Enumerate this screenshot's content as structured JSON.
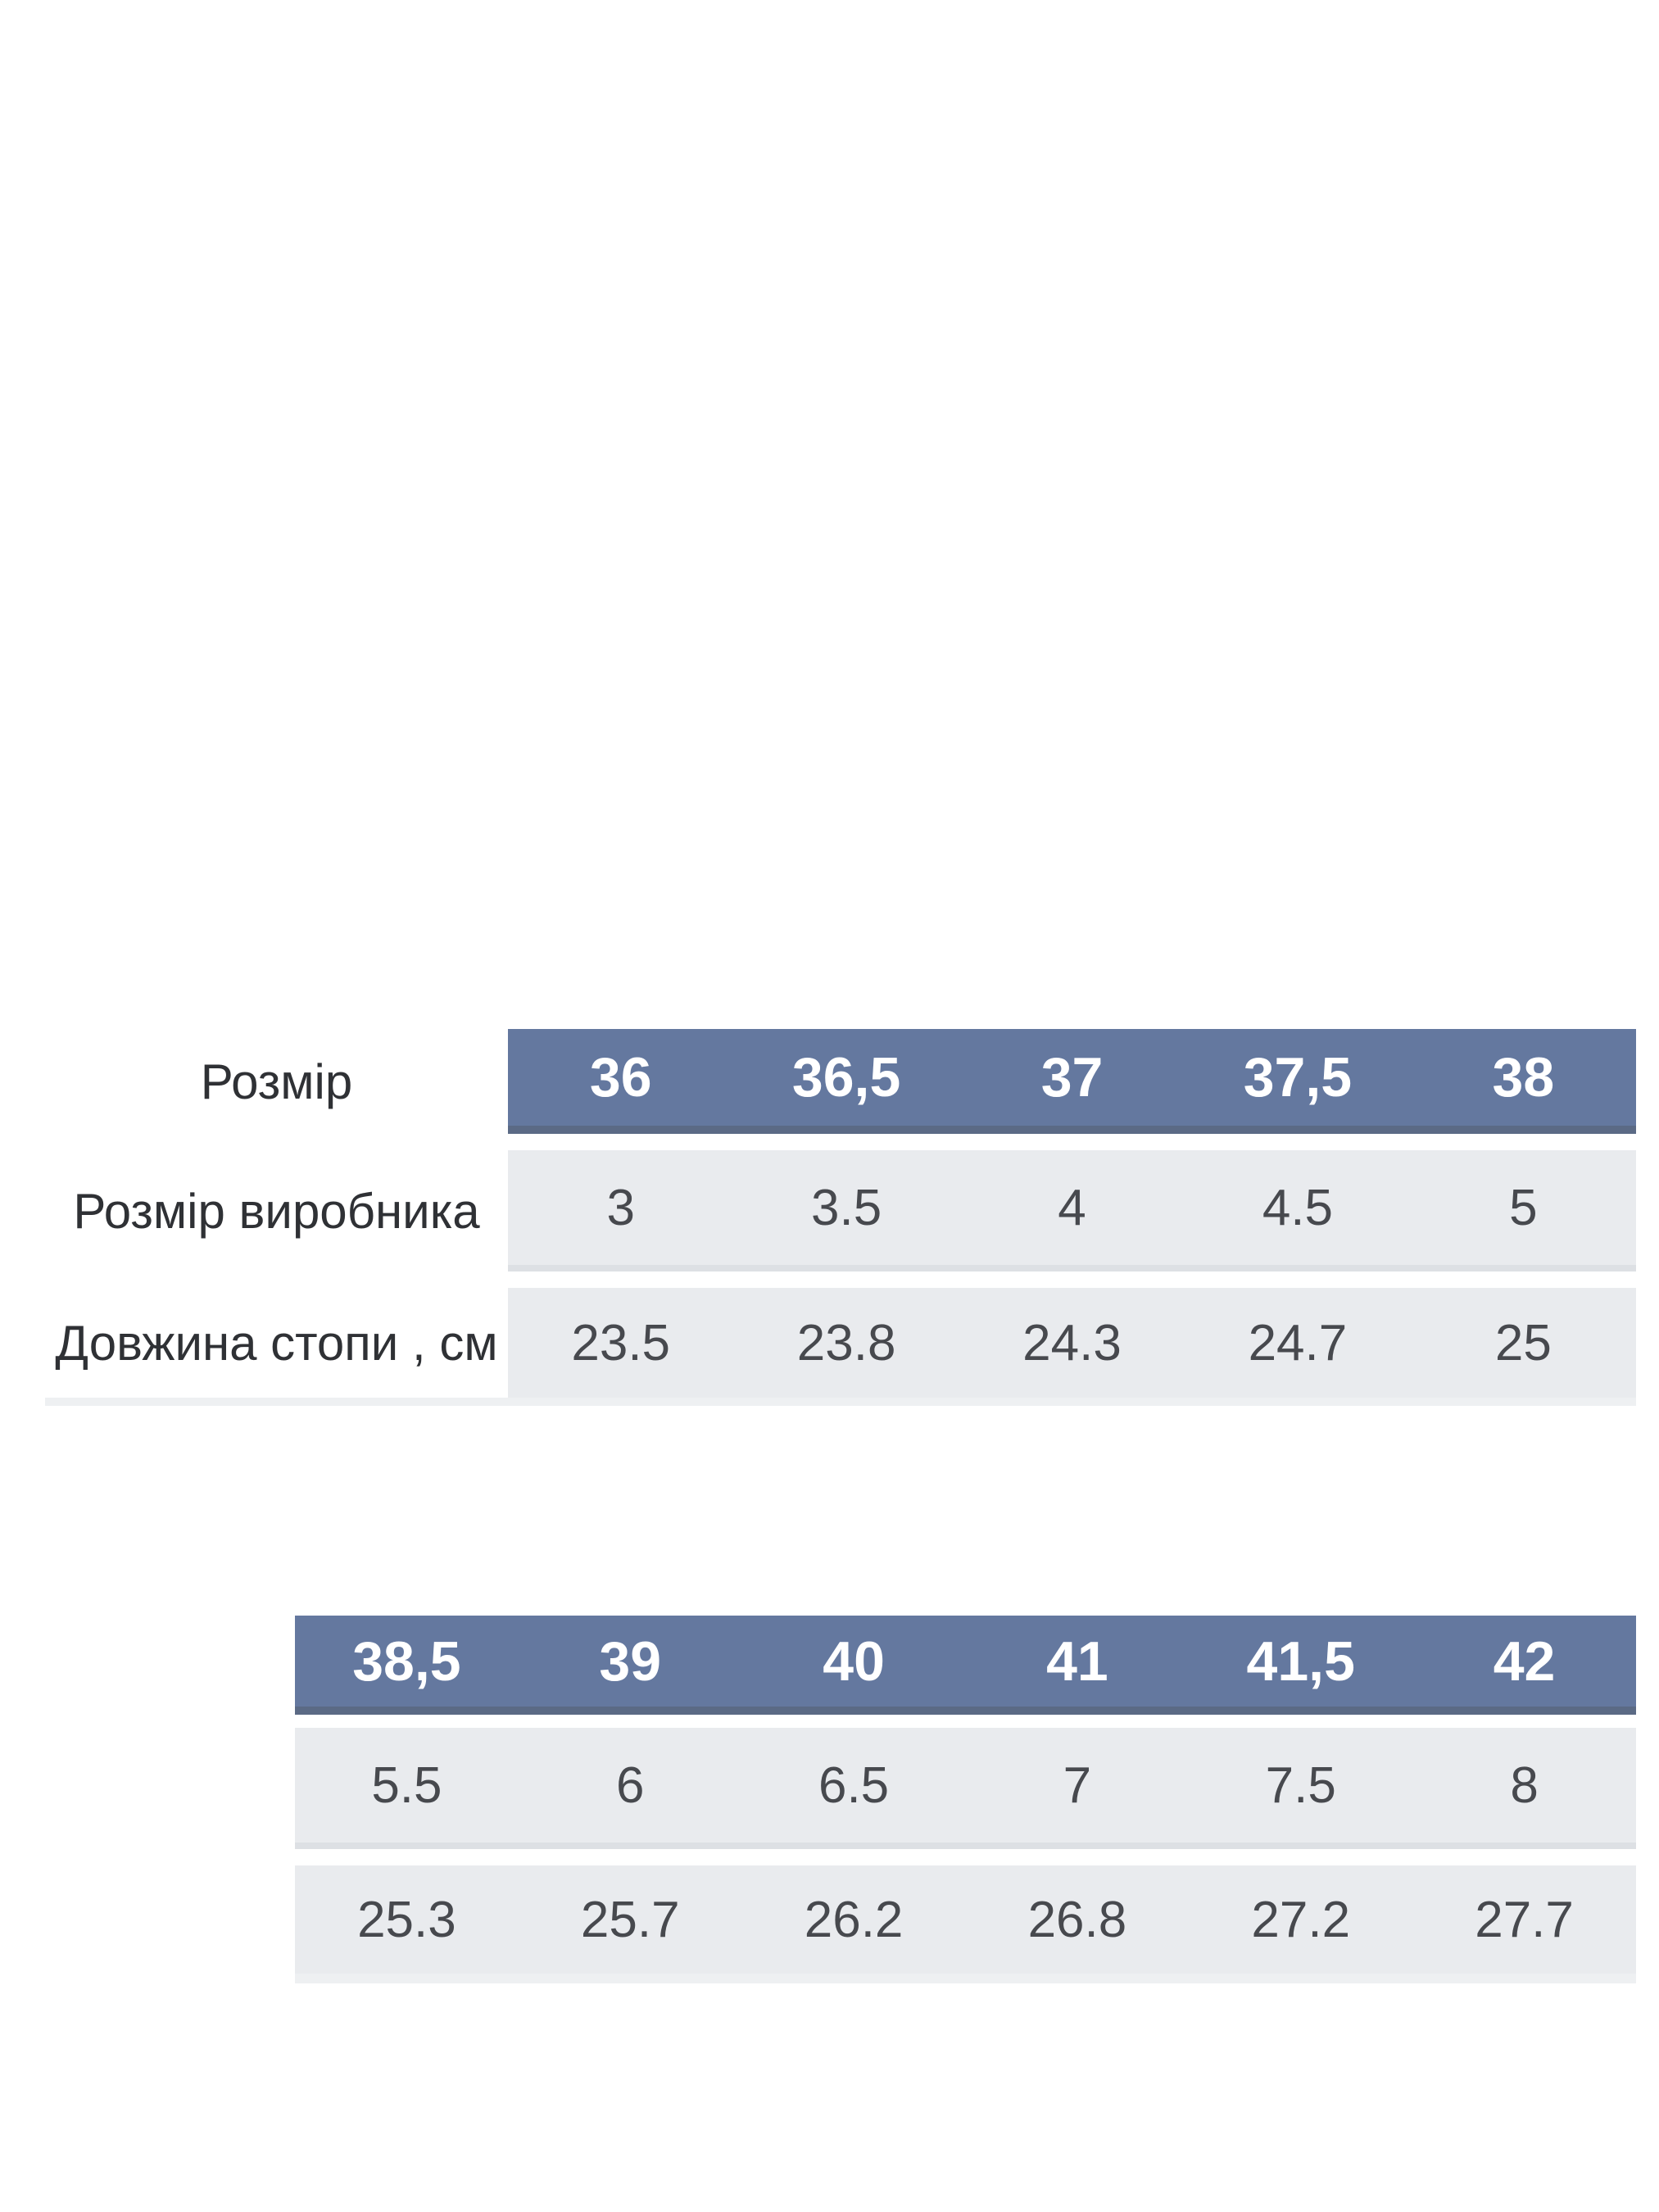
{
  "colors": {
    "header_bg": "#64789f",
    "header_border": "#5b6a85",
    "row_bg": "#e9ebee",
    "row_border": "#dde0e4",
    "table_bottom_border": "#eef0f2",
    "header_text": "#ffffff",
    "cell_text": "#47494e",
    "label_text": "#2f3135",
    "page_bg": "#ffffff"
  },
  "chart_data": {
    "type": "table",
    "tables": [
      {
        "rows": [
          {
            "label": "Розмір",
            "values": [
              "36",
              "36,5",
              "37",
              "37,5",
              "38"
            ]
          },
          {
            "label": "Розмір виробника",
            "values": [
              "3",
              "3.5",
              "4",
              "4.5",
              "5"
            ]
          },
          {
            "label": "Довжина стопи , см",
            "values": [
              "23.5",
              "23.8",
              "24.3",
              "24.7",
              "25"
            ]
          }
        ]
      },
      {
        "rows": [
          {
            "label": "",
            "values": [
              "38,5",
              "39",
              "40",
              "41",
              "41,5",
              "42"
            ]
          },
          {
            "label": "",
            "values": [
              "5.5",
              "6",
              "6.5",
              "7",
              "7.5",
              "8"
            ]
          },
          {
            "label": "",
            "values": [
              "25.3",
              "25.7",
              "26.2",
              "26.8",
              "27.2",
              "27.7"
            ]
          }
        ]
      }
    ]
  }
}
